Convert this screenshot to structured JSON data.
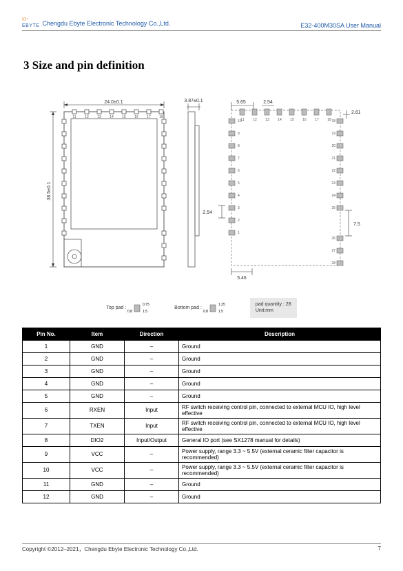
{
  "header": {
    "company": "Chengdu Ebyte Electronic Technology Co.,Ltd.",
    "doc": "E32-400M30SA User Manual",
    "logoText": "EBYTE"
  },
  "section": {
    "title": "3 Size and pin definition"
  },
  "diagram": {
    "top_w": "24.0±0.1",
    "left_h": "38.5±0.1",
    "side_w": "3.87±0.1",
    "rt_a": "5.65",
    "rt_b": "2.54",
    "rt_c": "2.61",
    "rr_mid": "7.57",
    "rb_l": "5.46",
    "rl_gap": "2.54",
    "pins_top": [
      "11",
      "12",
      "13",
      "14",
      "15",
      "16",
      "17",
      "18"
    ],
    "pins_left": [
      "10",
      "9",
      "8",
      "7",
      "6",
      "5",
      "4",
      "3",
      "2",
      "1"
    ],
    "pins_right_top": [
      "18",
      "19",
      "20",
      "21",
      "22",
      "23",
      "24",
      "25"
    ],
    "pins_right_bot": [
      "26",
      "27",
      "28"
    ]
  },
  "legend": {
    "top_label": "Top pad :",
    "top_a": "0.75",
    "top_b": "0.8",
    "top_c": "1.5",
    "bot_label": "Bottom pad :",
    "bot_a": "1.25",
    "bot_b": "0.8",
    "bot_c": "1.5",
    "qty": "pad quantity : 28",
    "unit": "Unit:mm"
  },
  "table": {
    "headers": [
      "Pin No.",
      "Item",
      "Direction",
      "Description"
    ],
    "rows": [
      [
        "1",
        "GND",
        "–",
        "Ground"
      ],
      [
        "2",
        "GND",
        "–",
        "Ground"
      ],
      [
        "3",
        "GND",
        "–",
        "Ground"
      ],
      [
        "4",
        "GND",
        "–",
        "Ground"
      ],
      [
        "5",
        "GND",
        "–",
        "Ground"
      ],
      [
        "6",
        "RXEN",
        "Input",
        "RF switch receiving control pin, connected to external MCU IO, high level effective"
      ],
      [
        "7",
        "TXEN",
        "Input",
        "RF switch receiving control pin, connected to external MCU IO, high level effective"
      ],
      [
        "8",
        "DIO2",
        "Input/Output",
        "General IO port (see SX1278 manual for details)"
      ],
      [
        "9",
        "VCC",
        "–",
        "Power supply, range 3.3 ~ 5.5V (external ceramic filter capacitor is recommended)"
      ],
      [
        "10",
        "VCC",
        "–",
        "Power supply, range 3.3 ~ 5.5V (external ceramic filter capacitor is recommended)"
      ],
      [
        "11",
        "GND",
        "–",
        "Ground"
      ],
      [
        "12",
        "GND",
        "–",
        "Ground"
      ]
    ]
  },
  "footer": {
    "copyright": "Copyright ©2012–2021，Chengdu Ebyte Electronic Technology Co.,Ltd.",
    "page": "7"
  }
}
